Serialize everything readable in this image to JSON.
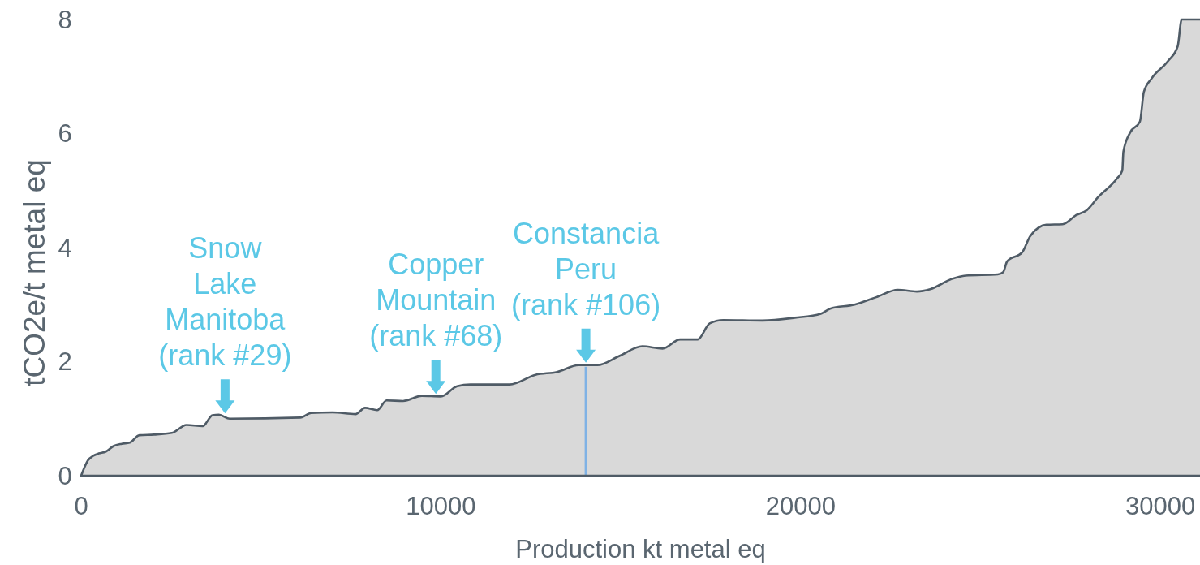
{
  "chart_data": {
    "type": "area",
    "xlabel": "Production kt metal eq",
    "ylabel": "tCO2e/t metal eq",
    "xlim": [
      0,
      31100
    ],
    "ylim": [
      0,
      8
    ],
    "xticks": [
      0,
      10000,
      20000,
      30000
    ],
    "yticks": [
      0,
      2,
      4,
      6,
      8
    ],
    "x": [
      0,
      190,
      340,
      490,
      680,
      900,
      1130,
      1350,
      1620,
      2030,
      2520,
      2930,
      3380,
      3650,
      3830,
      4130,
      6090,
      6390,
      6990,
      7630,
      7890,
      8230,
      8490,
      8950,
      9470,
      10000,
      10450,
      10820,
      11910,
      12630,
      13230,
      13830,
      14350,
      14960,
      15600,
      16160,
      16650,
      17140,
      17470,
      17850,
      18940,
      19840,
      20560,
      20820,
      21500,
      22100,
      22700,
      23230,
      23600,
      24200,
      24580,
      25480,
      25630,
      25740,
      26160,
      26380,
      26830,
      27280,
      27660,
      27960,
      28260,
      28790,
      28940,
      28970,
      29160,
      29430,
      29540,
      29760,
      30210,
      30480,
      30590,
      31100
    ],
    "values": [
      0,
      0.27,
      0.35,
      0.39,
      0.42,
      0.52,
      0.56,
      0.58,
      0.71,
      0.72,
      0.75,
      0.89,
      0.87,
      1.06,
      1.07,
      1.0,
      1.02,
      1.1,
      1.11,
      1.08,
      1.19,
      1.15,
      1.32,
      1.31,
      1.4,
      1.39,
      1.57,
      1.6,
      1.6,
      1.77,
      1.82,
      1.94,
      1.94,
      2.1,
      2.27,
      2.23,
      2.39,
      2.39,
      2.67,
      2.73,
      2.72,
      2.77,
      2.84,
      2.93,
      3.0,
      3.13,
      3.26,
      3.23,
      3.27,
      3.45,
      3.51,
      3.53,
      3.57,
      3.76,
      3.92,
      4.2,
      4.4,
      4.41,
      4.57,
      4.66,
      4.88,
      5.21,
      5.35,
      5.68,
      6.02,
      6.21,
      6.73,
      6.97,
      7.27,
      7.53,
      8.0,
      8.0
    ],
    "color": "#d9d9d9",
    "ref_lines": [
      {
        "axis": "x",
        "value": 14030,
        "color": "#7fb2e5"
      }
    ],
    "annotations": [
      {
        "text": "Snow\nLake\nManitoba\n(rank #29)",
        "x": 4000,
        "y": 1.05
      },
      {
        "text": "Copper\nMountain\n(rank #68)",
        "x": 9860,
        "y": 1.39
      },
      {
        "text": "Constancia\nPeru\n(rank #106)",
        "x": 14030,
        "y": 1.94
      }
    ]
  }
}
